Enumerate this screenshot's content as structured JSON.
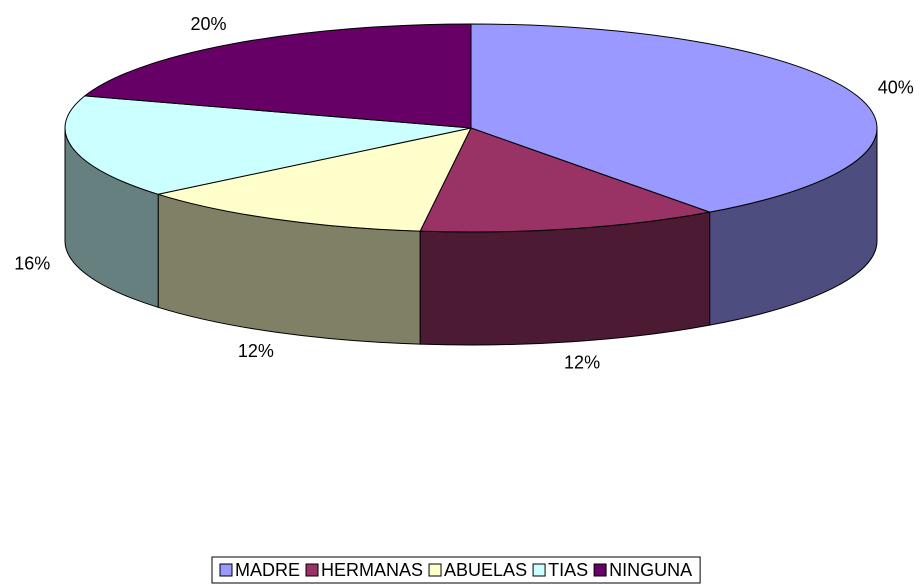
{
  "chart_data": {
    "type": "pie",
    "categories": [
      "MADRE",
      "HERMANAS",
      "ABUELAS",
      "TIAS",
      "NINGUNA"
    ],
    "values": [
      40,
      12,
      12,
      16,
      20
    ],
    "value_labels": [
      "40%",
      "12%",
      "12%",
      "16%",
      "20%"
    ],
    "colors": [
      "#9999ff",
      "#993366",
      "#ffffcc",
      "#ccffff",
      "#660066"
    ],
    "legend": "bottom"
  }
}
